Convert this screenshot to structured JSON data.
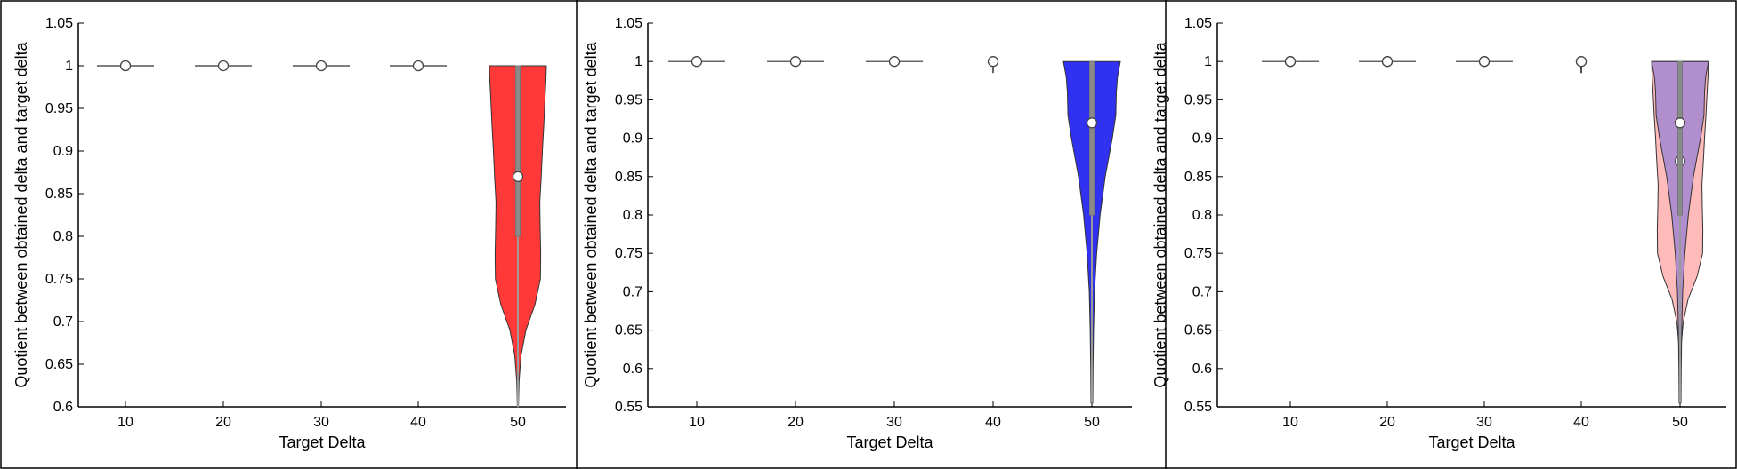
{
  "chart_data": [
    {
      "type": "violin",
      "xlabel": "Target Delta",
      "ylabel": "Quotient between obtained delta and target delta",
      "categories": [
        "10",
        "20",
        "30",
        "40",
        "50"
      ],
      "ylim": [
        0.6,
        1.05
      ],
      "yticks": [
        "0.6",
        "0.65",
        "0.7",
        "0.75",
        "0.8",
        "0.85",
        "0.9",
        "0.95",
        "1",
        "1.05"
      ],
      "grid": false,
      "series": [
        {
          "color": "#ff2d2d",
          "medians": [
            1.0,
            1.0,
            1.0,
            1.0,
            0.87
          ],
          "whiskers": [
            [
              1.0,
              1.0
            ],
            [
              1.0,
              1.0
            ],
            [
              1.0,
              1.0
            ],
            [
              1.0,
              1.0
            ],
            [
              0.6,
              1.0
            ]
          ],
          "iqr": [
            [
              1.0,
              1.0
            ],
            [
              1.0,
              1.0
            ],
            [
              1.0,
              1.0
            ],
            [
              1.0,
              1.0
            ],
            [
              0.8,
              1.0
            ]
          ],
          "violin": {
            "category": "50",
            "y": [
              0.6,
              0.63,
              0.66,
              0.69,
              0.72,
              0.75,
              0.78,
              0.81,
              0.84,
              0.87,
              0.9,
              0.93,
              0.96,
              0.98,
              1.0
            ],
            "halfwidth": [
              0.02,
              0.04,
              0.11,
              0.28,
              0.6,
              0.79,
              0.8,
              0.78,
              0.77,
              0.82,
              0.86,
              0.91,
              0.95,
              0.98,
              1.0
            ]
          }
        }
      ]
    },
    {
      "type": "violin",
      "xlabel": "Target Delta",
      "ylabel": "Quotient between obtained delta and target delta",
      "categories": [
        "10",
        "20",
        "30",
        "40",
        "50"
      ],
      "ylim": [
        0.55,
        1.05
      ],
      "yticks": [
        "0.55",
        "0.6",
        "0.65",
        "0.7",
        "0.75",
        "0.8",
        "0.85",
        "0.9",
        "0.95",
        "1",
        "1.05"
      ],
      "grid": false,
      "series": [
        {
          "color": "#2626f0",
          "medians": [
            1.0,
            1.0,
            1.0,
            1.0,
            0.92
          ],
          "whiskers": [
            [
              1.0,
              1.0
            ],
            [
              1.0,
              1.0
            ],
            [
              1.0,
              1.0
            ],
            [
              0.985,
              1.0
            ],
            [
              0.555,
              1.0
            ]
          ],
          "iqr": [
            [
              1.0,
              1.0
            ],
            [
              1.0,
              1.0
            ],
            [
              1.0,
              1.0
            ],
            [
              1.0,
              1.0
            ],
            [
              0.8,
              1.0
            ]
          ],
          "violin": {
            "category": "50",
            "y": [
              0.555,
              0.6,
              0.65,
              0.7,
              0.75,
              0.8,
              0.85,
              0.9,
              0.93,
              0.96,
              0.98,
              1.0
            ],
            "halfwidth": [
              0.03,
              0.04,
              0.06,
              0.09,
              0.17,
              0.29,
              0.47,
              0.72,
              0.84,
              0.86,
              0.9,
              1.0
            ]
          }
        }
      ]
    },
    {
      "type": "violin",
      "xlabel": "Target Delta",
      "ylabel": "Quotient between obtained delta and target delta",
      "categories": [
        "10",
        "20",
        "30",
        "40",
        "50"
      ],
      "ylim": [
        0.55,
        1.05
      ],
      "yticks": [
        "0.55",
        "0.6",
        "0.65",
        "0.7",
        "0.75",
        "0.8",
        "0.85",
        "0.9",
        "0.95",
        "1",
        "1.05"
      ],
      "grid": false,
      "series": [
        {
          "color": "#ffb3b3",
          "medians": [
            1.0,
            1.0,
            1.0,
            1.0,
            0.87
          ],
          "whiskers": [
            [
              1.0,
              1.0
            ],
            [
              1.0,
              1.0
            ],
            [
              1.0,
              1.0
            ],
            [
              0.985,
              1.0
            ],
            [
              0.6,
              1.0
            ]
          ],
          "iqr": [
            [
              1.0,
              1.0
            ],
            [
              1.0,
              1.0
            ],
            [
              1.0,
              1.0
            ],
            [
              1.0,
              1.0
            ],
            [
              0.8,
              1.0
            ]
          ],
          "violin": {
            "category": "50",
            "y": [
              0.6,
              0.63,
              0.66,
              0.69,
              0.72,
              0.75,
              0.78,
              0.81,
              0.84,
              0.87,
              0.9,
              0.93,
              0.96,
              0.98,
              1.0
            ],
            "halfwidth": [
              0.02,
              0.04,
              0.11,
              0.28,
              0.6,
              0.79,
              0.8,
              0.78,
              0.77,
              0.82,
              0.86,
              0.91,
              0.95,
              0.98,
              1.0
            ]
          }
        },
        {
          "color": "#a98ad0",
          "medians": [
            1.0,
            1.0,
            1.0,
            1.0,
            0.92
          ],
          "whiskers": [
            [
              1.0,
              1.0
            ],
            [
              1.0,
              1.0
            ],
            [
              1.0,
              1.0
            ],
            [
              0.985,
              1.0
            ],
            [
              0.555,
              1.0
            ]
          ],
          "iqr": [
            [
              1.0,
              1.0
            ],
            [
              1.0,
              1.0
            ],
            [
              1.0,
              1.0
            ],
            [
              1.0,
              1.0
            ],
            [
              0.8,
              1.0
            ]
          ],
          "violin": {
            "category": "50",
            "y": [
              0.555,
              0.6,
              0.65,
              0.7,
              0.75,
              0.8,
              0.85,
              0.9,
              0.93,
              0.96,
              0.98,
              1.0
            ],
            "halfwidth": [
              0.03,
              0.04,
              0.06,
              0.09,
              0.17,
              0.29,
              0.47,
              0.72,
              0.84,
              0.86,
              0.9,
              1.0
            ]
          }
        }
      ]
    }
  ]
}
